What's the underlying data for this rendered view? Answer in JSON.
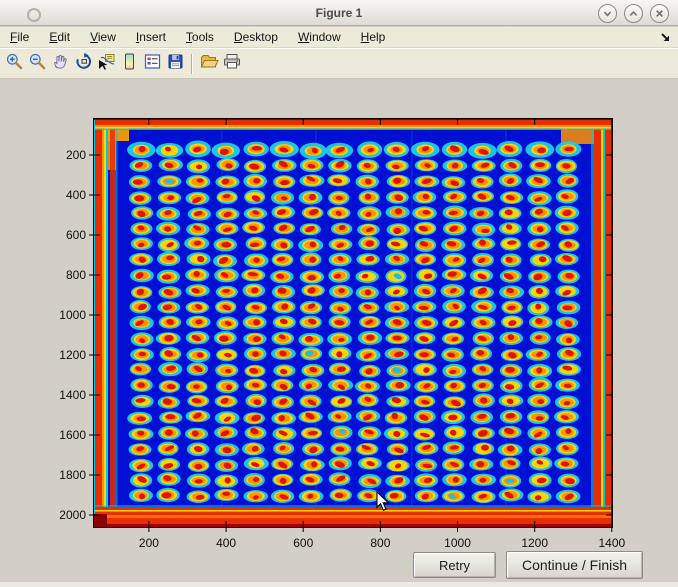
{
  "window": {
    "title": "Figure 1",
    "controls": [
      {
        "name": "shade-button",
        "glyph": "chevron-down"
      },
      {
        "name": "maximize-button",
        "glyph": "chevron-up"
      },
      {
        "name": "close-button",
        "glyph": "close"
      }
    ]
  },
  "menubar": {
    "items": [
      {
        "label": "File"
      },
      {
        "label": "Edit"
      },
      {
        "label": "View"
      },
      {
        "label": "Insert"
      },
      {
        "label": "Tools"
      },
      {
        "label": "Desktop"
      },
      {
        "label": "Window"
      },
      {
        "label": "Help"
      }
    ]
  },
  "toolbar": {
    "buttons": [
      {
        "name": "zoom-in"
      },
      {
        "name": "zoom-out"
      },
      {
        "name": "pan"
      },
      {
        "name": "rotate-3d"
      },
      {
        "name": "data-cursor"
      },
      {
        "name": "insert-colorbar"
      },
      {
        "name": "insert-legend"
      },
      {
        "name": "save"
      },
      {
        "name": "separator"
      },
      {
        "name": "open-folder"
      },
      {
        "name": "print"
      }
    ]
  },
  "figure": {
    "x_ticks": [
      200,
      400,
      600,
      800,
      1000,
      1200,
      1400
    ],
    "y_ticks": [
      200,
      400,
      600,
      800,
      1000,
      1200,
      1400,
      1600,
      1800,
      2000
    ],
    "image": {
      "kind": "microarray-scan-jet-colormap",
      "grid_rows": 23,
      "grid_cols": 16,
      "background": "#0010d2",
      "spot_halo": "#1ad0ee",
      "spot_body": "#ffd400",
      "spot_ring": "#ff9300",
      "spot_center": "#dd1404",
      "defect_center": "#18c0e8",
      "edge_red": "#e62e00",
      "edge_orange": "#ff9000",
      "edge_yellow": "#ffd800",
      "edge_cyan": "#00c8e8",
      "edge_dark": "#8a0000"
    }
  },
  "action_buttons": {
    "retry": "Retry",
    "continue": "Continue / Finish"
  }
}
